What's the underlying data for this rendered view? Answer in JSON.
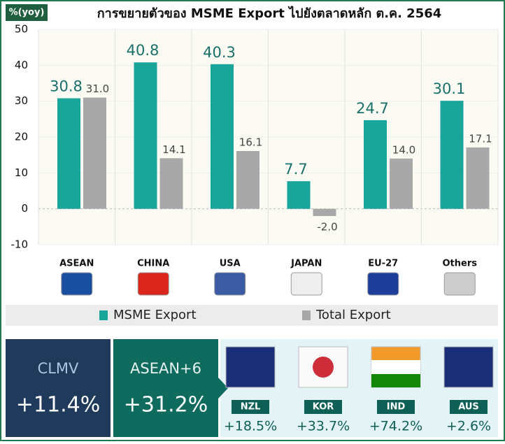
{
  "chart_data": {
    "type": "bar",
    "title": "การขยายตัวของ MSME Export ไปยังตลาดหลัก ต.ค. 2564",
    "y_label": "%(yoy)",
    "categories": [
      "ASEAN",
      "CHINA",
      "USA",
      "JAPAN",
      "EU-27",
      "Others"
    ],
    "series": [
      {
        "name": "MSME Export",
        "color": "#1aa59b",
        "values": [
          30.8,
          40.8,
          40.3,
          7.7,
          24.7,
          30.1
        ],
        "value_labels": [
          "30.8",
          "40.8",
          "40.3",
          "7.7",
          "24.7",
          "30.1"
        ]
      },
      {
        "name": "Total Export",
        "color": "#a8a8a8",
        "values": [
          31.0,
          14.1,
          16.1,
          -2.0,
          14.0,
          17.1
        ],
        "value_labels": [
          "31.0",
          "14.1",
          "16.1",
          "-2.0",
          "14.0",
          "17.1"
        ]
      }
    ],
    "ylim": [
      -10,
      50
    ],
    "yticks": [
      50,
      40,
      30,
      20,
      10,
      0,
      -10
    ],
    "grid": true
  },
  "panel": {
    "groups": [
      {
        "name": "CLMV",
        "value": "+11.4%"
      },
      {
        "name": "ASEAN+6",
        "value": "+31.2%"
      }
    ],
    "countries": [
      {
        "code": "NZL",
        "value": "+18.5%"
      },
      {
        "code": "KOR",
        "value": "+33.7%"
      },
      {
        "code": "IND",
        "value": "+74.2%"
      },
      {
        "code": "AUS",
        "value": "+2.6%"
      }
    ]
  }
}
